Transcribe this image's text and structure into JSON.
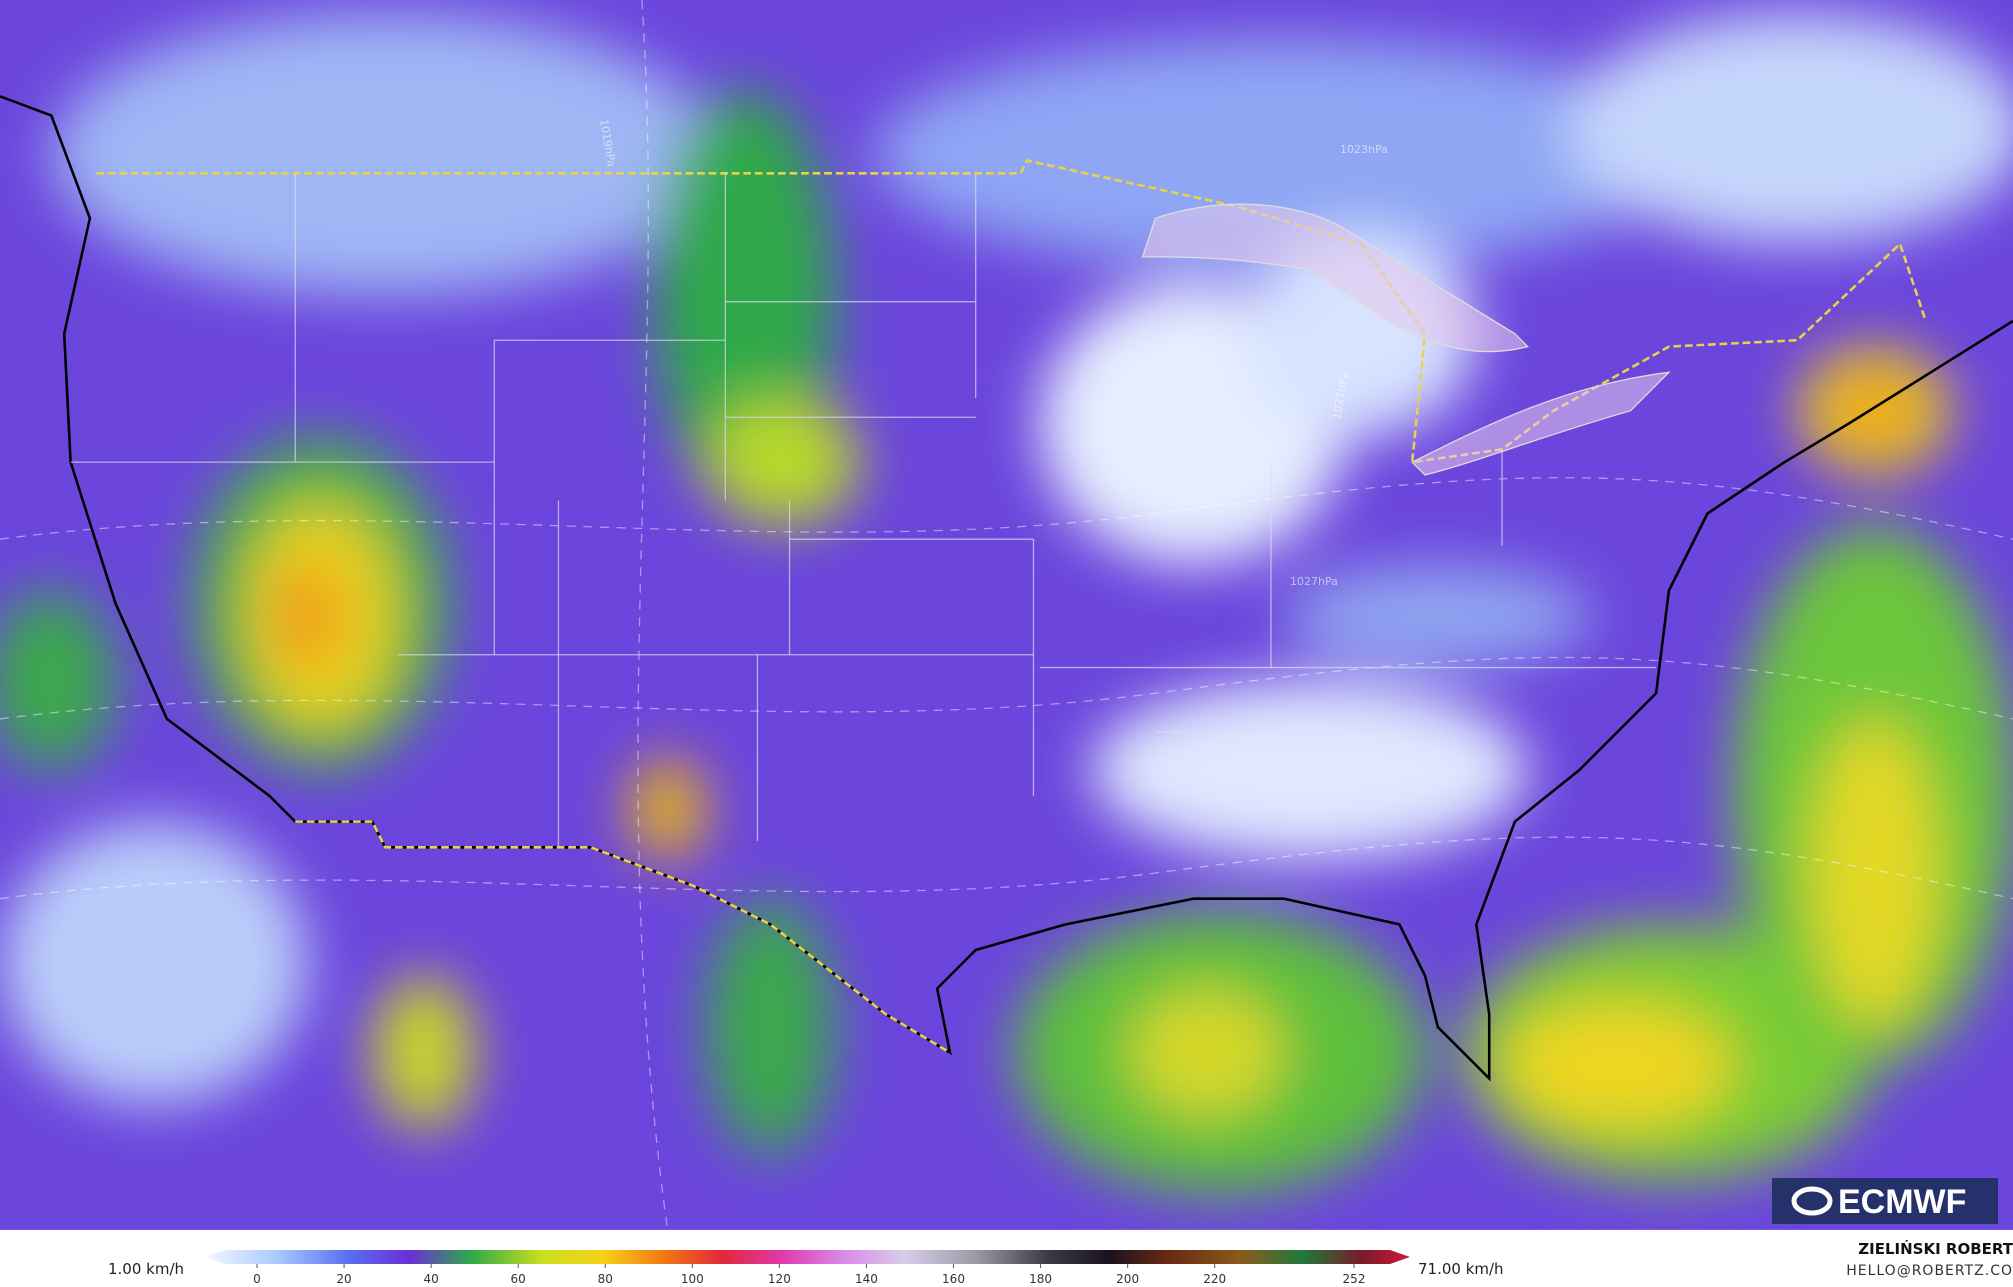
{
  "logo": "ECMWF",
  "isobar_labels": [
    "1023hPa",
    "1027hPa",
    "1027hPa",
    "1019hPa"
  ],
  "legend": {
    "min_label": "1.00 km/h",
    "max_label": "71.00 km/h",
    "ticks": [
      0,
      20,
      40,
      60,
      80,
      100,
      120,
      140,
      160,
      180,
      200,
      220,
      252
    ]
  },
  "credit": {
    "name": "ZIELIŃSKI ROBERT",
    "contact": "HELLO@ROBERTZ.CO"
  }
}
